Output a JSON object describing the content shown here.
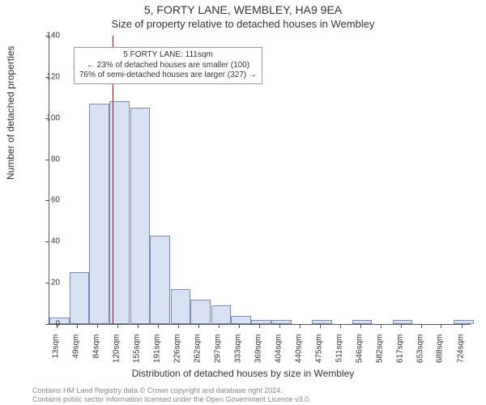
{
  "title": "5, FORTY LANE, WEMBLEY, HA9 9EA",
  "subtitle": "Size of property relative to detached houses in Wembley",
  "ylabel": "Number of detached properties",
  "xlabel": "Distribution of detached houses by size in Wembley",
  "credits_line1": "Contains HM Land Registry data © Crown copyright and database right 2024.",
  "credits_line2": "Contains public sector information licensed under the Open Government Licence v3.0.",
  "annotation": {
    "line1": "5 FORTY LANE: 111sqm",
    "line2": "← 23% of detached houses are smaller (100)",
    "line3": "76% of semi-detached houses are larger (327) →"
  },
  "marker": {
    "value_x": 111,
    "color": "#cc0000"
  },
  "chart": {
    "type": "histogram",
    "x_min": 0,
    "x_max": 740,
    "y_min": 0,
    "y_max": 140,
    "y_ticks": [
      0,
      20,
      40,
      60,
      80,
      100,
      120,
      140
    ],
    "x_tick_values": [
      13,
      49,
      84,
      120,
      155,
      191,
      226,
      262,
      297,
      333,
      369,
      404,
      440,
      475,
      511,
      546,
      582,
      617,
      653,
      688,
      724
    ],
    "x_tick_suffix": "sqm",
    "bar_fill": "#d8e2f2",
    "bar_stroke": "#7a8cb2",
    "bar_width_data": 35,
    "bars": [
      {
        "x": 0,
        "h": 3
      },
      {
        "x": 35,
        "h": 25
      },
      {
        "x": 70,
        "h": 107
      },
      {
        "x": 106,
        "h": 108
      },
      {
        "x": 142,
        "h": 105
      },
      {
        "x": 177,
        "h": 43
      },
      {
        "x": 213,
        "h": 17
      },
      {
        "x": 248,
        "h": 12
      },
      {
        "x": 284,
        "h": 9
      },
      {
        "x": 319,
        "h": 4
      },
      {
        "x": 355,
        "h": 2
      },
      {
        "x": 390,
        "h": 2
      },
      {
        "x": 426,
        "h": 0
      },
      {
        "x": 461,
        "h": 2
      },
      {
        "x": 497,
        "h": 0
      },
      {
        "x": 532,
        "h": 2
      },
      {
        "x": 568,
        "h": 0
      },
      {
        "x": 603,
        "h": 2
      },
      {
        "x": 639,
        "h": 0
      },
      {
        "x": 674,
        "h": 0
      },
      {
        "x": 710,
        "h": 2
      }
    ],
    "background": "#ffffff",
    "axis_color": "#555555",
    "tick_fontsize": 10,
    "label_fontsize": 12,
    "title_fontsize": 14
  }
}
